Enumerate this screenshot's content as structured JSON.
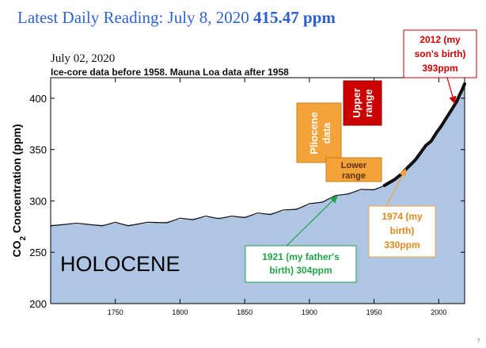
{
  "header": {
    "latest_label": "Latest Daily Reading: July 8, 2020",
    "latest_value": "415.47 ppm",
    "date": "July 02, 2020",
    "subtitle": "Ice-core data before 1958. Mauna Loa data after 1958"
  },
  "page_number": "7",
  "colors": {
    "fill": "#aec6e4",
    "line": "#111111",
    "title_blue": "#2e63d9",
    "red_label": "#cc0000",
    "orange": "#f4a23a",
    "green": "#1fa34a"
  },
  "chart_data": {
    "type": "area",
    "ylabel": "CO2 Concentration (ppm)",
    "xlim": [
      1700,
      2020
    ],
    "ylim": [
      200,
      420
    ],
    "xticks": [
      1750,
      1800,
      1850,
      1900,
      1950,
      2000
    ],
    "yticks": [
      200,
      250,
      300,
      350,
      400
    ],
    "x": [
      1700,
      1720,
      1740,
      1750,
      1760,
      1775,
      1790,
      1800,
      1810,
      1820,
      1830,
      1840,
      1850,
      1860,
      1870,
      1880,
      1890,
      1900,
      1910,
      1920,
      1930,
      1940,
      1950,
      1958,
      1962,
      1966,
      1970,
      1974,
      1978,
      1982,
      1986,
      1990,
      1994,
      1998,
      2002,
      2006,
      2010,
      2012,
      2014,
      2016,
      2018,
      2020
    ],
    "values": [
      277,
      277,
      277,
      278,
      277,
      278,
      280,
      282,
      283,
      284,
      284,
      284,
      285,
      287,
      288,
      290,
      293,
      296,
      300,
      304,
      308,
      310,
      312,
      315,
      318,
      321,
      325,
      330,
      335,
      340,
      347,
      354,
      358,
      366,
      373,
      381,
      389,
      393,
      397,
      403,
      408,
      414
    ],
    "region_label": "HOLOCENE",
    "annotations": {
      "pliocene": "Pliocene data",
      "upper_range": "Upper range",
      "lower_range": "Lower range",
      "father": "1921 (my father's birth) 304ppm",
      "me": "1974 (my birth) 330ppm",
      "son": "2012 (my son's birth) 393ppm"
    }
  }
}
